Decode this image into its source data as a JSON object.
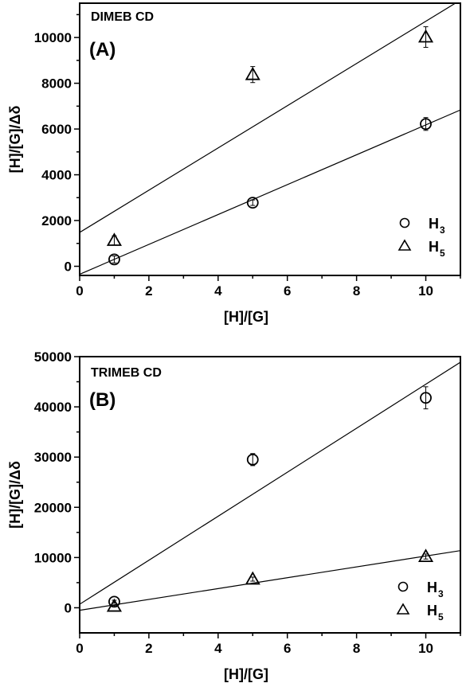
{
  "chart_data": [
    {
      "type": "scatter",
      "title": "DIMEB CD",
      "panel_label": "(A)",
      "xlabel": "[H]/[G]",
      "ylabel": "[H]/[G]/Δδ",
      "xlim": [
        0,
        11
      ],
      "ylim": [
        -400,
        11500
      ],
      "xticks": [
        0,
        2,
        4,
        6,
        8,
        10
      ],
      "yticks": [
        0,
        2000,
        4000,
        6000,
        8000,
        10000
      ],
      "grid": false,
      "legend_position": "bottom-right",
      "series": [
        {
          "name": "H",
          "name_sub": "3",
          "marker": "circle",
          "points": [
            {
              "x": 1,
              "y": 300,
              "err": 150
            },
            {
              "x": 5,
              "y": 2780,
              "err": 120
            },
            {
              "x": 10,
              "y": 6220,
              "err": 280
            }
          ],
          "fit": {
            "slope": 653,
            "intercept": -350
          }
        },
        {
          "name": "H",
          "name_sub": "5",
          "marker": "triangle",
          "points": [
            {
              "x": 1,
              "y": 1130,
              "err": 200
            },
            {
              "x": 5,
              "y": 8380,
              "err": 350
            },
            {
              "x": 10,
              "y": 10020,
              "err": 450
            }
          ],
          "fit": {
            "slope": 923,
            "intercept": 1480
          }
        }
      ]
    },
    {
      "type": "scatter",
      "title": "TRIMEB CD",
      "panel_label": "(B)",
      "xlabel": "[H]/[G]",
      "ylabel": "[H]/[G]/Δδ",
      "xlim": [
        0,
        11
      ],
      "ylim": [
        -5000,
        50000
      ],
      "xticks": [
        0,
        2,
        4,
        6,
        8,
        10
      ],
      "yticks": [
        0,
        10000,
        20000,
        30000,
        40000,
        50000
      ],
      "grid": false,
      "legend_position": "bottom-right",
      "series": [
        {
          "name": "H",
          "name_sub": "3",
          "marker": "circle",
          "points": [
            {
              "x": 1,
              "y": 1200,
              "err": 300
            },
            {
              "x": 5,
              "y": 29500,
              "err": 1200
            },
            {
              "x": 10,
              "y": 41800,
              "err": 2200
            }
          ],
          "fit": {
            "slope": 4380,
            "intercept": 700
          }
        },
        {
          "name": "H",
          "name_sub": "5",
          "marker": "triangle",
          "points": [
            {
              "x": 1,
              "y": 300,
              "err": 150
            },
            {
              "x": 5,
              "y": 5700,
              "err": 400
            },
            {
              "x": 10,
              "y": 10200,
              "err": 500
            }
          ],
          "fit": {
            "slope": 1080,
            "intercept": -500
          }
        }
      ]
    }
  ]
}
